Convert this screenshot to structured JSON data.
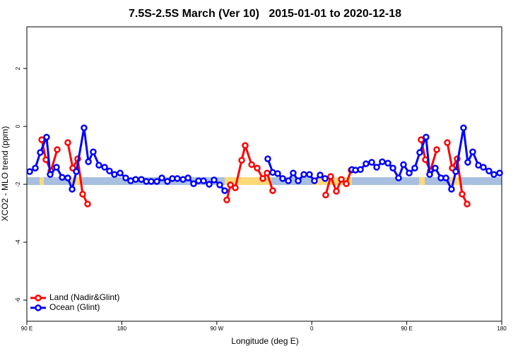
{
  "chart_data": {
    "type": "line",
    "title": "7.5S-2.5S March (Ver 10)   2015-01-01 to 2020-12-18",
    "x_label": "Longitude (deg E)",
    "y_label": "XCO2 - MLO trend (ppm)",
    "xlim": [
      90,
      540
    ],
    "ylim": [
      -6.73,
      3.44
    ],
    "xticks": [
      {
        "value": 90,
        "label": "90 E"
      },
      180,
      {
        "value": 270,
        "label": "90 W"
      },
      {
        "value": 360,
        "label": "0"
      },
      {
        "value": 450,
        "label": "90 E"
      },
      {
        "value": 540,
        "label": "180"
      }
    ],
    "yticks": [
      2,
      0,
      -2,
      -4,
      -6
    ],
    "legend": "bottom-left",
    "series": [
      {
        "name": "Land (Nadir&Glint)",
        "color": "#ff0000",
        "x": [
          104.1,
          108.1,
          112.8,
          118.8,
          null,
          128.8,
          133.5,
          138.2,
          142.9,
          147.6,
          null,
          279.5,
          282.9,
          287.5,
          293.6,
          296.9,
          303.0,
          308.3,
          313.6,
          317.7,
          323.0,
          null,
          373.2,
          377.9,
          383.3,
          388.0,
          392.7,
          397.3,
          null,
          463.6,
          467.7,
          472.3,
          478.4,
          null,
          488.4,
          493.1,
          497.8,
          502.5,
          507.2
        ],
        "values": [
          -0.46,
          -1.15,
          -1.54,
          -0.8,
          null,
          -0.56,
          -1.44,
          -1.12,
          -2.34,
          -2.68,
          null,
          -2.54,
          -2.02,
          -2.12,
          -1.17,
          -0.66,
          -1.32,
          -1.44,
          -1.8,
          -1.61,
          -2.22,
          null,
          -2.37,
          -1.73,
          -2.24,
          -1.83,
          -1.98,
          -1.51,
          null,
          -0.46,
          -1.15,
          -1.54,
          -0.8,
          null,
          -0.56,
          -1.44,
          -1.12,
          -2.34,
          -2.68
        ]
      },
      {
        "name": "Ocean (Glint)",
        "color": "#0000ff",
        "x": [
          92.7,
          98.0,
          102.7,
          108.7,
          112.1,
          118.1,
          123.5,
          128.8,
          132.9,
          136.9,
          144.2,
          148.3,
          152.9,
          158.3,
          163.7,
          168.3,
          173.0,
          178.4,
          183.7,
          188.4,
          193.1,
          198.5,
          203.2,
          207.8,
          213.2,
          217.9,
          223.2,
          227.9,
          232.6,
          238.0,
          242.7,
          248.0,
          252.7,
          257.4,
          262.8,
          267.4,
          272.8,
          277.5,
          null,
          318.3,
          323.0,
          327.7,
          332.4,
          337.8,
          342.4,
          347.1,
          352.5,
          357.8,
          362.5,
          367.9,
          372.6,
          null,
          398.0,
          401.4,
          406.1,
          411.4,
          416.8,
          421.5,
          426.8,
          432.2,
          436.9,
          442.2,
          446.9,
          452.3,
          457.6,
          462.3,
          468.3,
          471.7,
          477.0,
          482.4,
          487.1,
          492.4,
          496.5,
          503.8,
          507.8,
          512.5,
          517.9,
          522.6,
          527.9,
          532.6,
          538.0
        ],
        "values": [
          -1.56,
          -1.44,
          -0.9,
          -0.37,
          -1.66,
          -1.41,
          -1.76,
          -1.78,
          -2.17,
          -1.56,
          -0.05,
          -1.22,
          -0.88,
          -1.34,
          -1.41,
          -1.54,
          -1.66,
          -1.61,
          -1.78,
          -1.88,
          -1.83,
          -1.83,
          -1.9,
          -1.9,
          -1.9,
          -1.78,
          -1.9,
          -1.8,
          -1.8,
          -1.83,
          -1.78,
          -1.98,
          -1.88,
          -1.88,
          -2.0,
          -1.85,
          -2.02,
          -2.22,
          null,
          -1.12,
          -1.59,
          -1.63,
          -1.8,
          -1.88,
          -1.61,
          -1.88,
          -1.66,
          -1.66,
          -1.88,
          -1.68,
          -1.8,
          null,
          -1.49,
          -1.51,
          -1.49,
          -1.29,
          -1.24,
          -1.41,
          -1.22,
          -1.27,
          -1.44,
          -1.78,
          -1.32,
          -1.61,
          -1.44,
          -0.9,
          -0.37,
          -1.66,
          -1.44,
          -1.78,
          -1.78,
          -2.17,
          -1.56,
          -0.05,
          -1.24,
          -0.88,
          -1.34,
          -1.41,
          -1.54,
          -1.66,
          -1.61
        ]
      }
    ]
  }
}
